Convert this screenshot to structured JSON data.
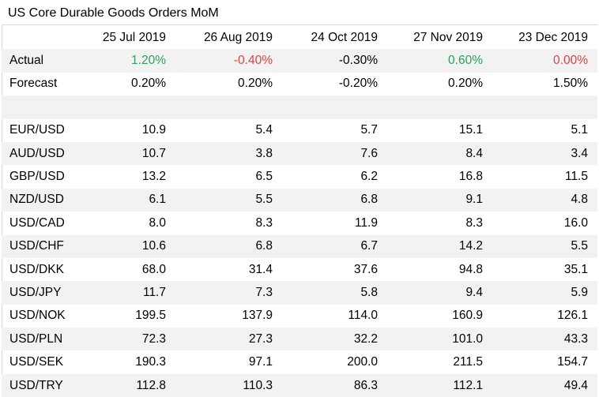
{
  "title": "US Core Durable Goods Orders MoM",
  "columns": [
    "25 Jul 2019",
    "26 Aug 2019",
    "24 Oct 2019",
    "27 Nov 2019",
    "23 Dec 2019"
  ],
  "actual": {
    "label": "Actual",
    "values": [
      "1.20%",
      "-0.40%",
      "-0.30%",
      "0.60%",
      "0.00%"
    ]
  },
  "forecast": {
    "label": "Forecast",
    "values": [
      "0.20%",
      "0.20%",
      "-0.20%",
      "0.20%",
      "1.50%"
    ]
  },
  "pairs": [
    {
      "pair": "EUR/USD",
      "values": [
        "10.9",
        "5.4",
        "5.7",
        "15.1",
        "5.1"
      ]
    },
    {
      "pair": "AUD/USD",
      "values": [
        "10.7",
        "3.8",
        "7.6",
        "8.4",
        "3.4"
      ]
    },
    {
      "pair": "GBP/USD",
      "values": [
        "13.2",
        "6.5",
        "6.2",
        "16.8",
        "11.5"
      ]
    },
    {
      "pair": "NZD/USD",
      "values": [
        "6.1",
        "5.5",
        "6.8",
        "9.1",
        "4.8"
      ]
    },
    {
      "pair": "USD/CAD",
      "values": [
        "8.0",
        "8.3",
        "11.9",
        "8.3",
        "16.0"
      ]
    },
    {
      "pair": "USD/CHF",
      "values": [
        "10.6",
        "6.8",
        "6.7",
        "14.2",
        "5.5"
      ]
    },
    {
      "pair": "USD/DKK",
      "values": [
        "68.0",
        "31.4",
        "37.6",
        "94.8",
        "35.1"
      ]
    },
    {
      "pair": "USD/JPY",
      "values": [
        "11.7",
        "7.3",
        "5.8",
        "9.4",
        "5.9"
      ]
    },
    {
      "pair": "USD/NOK",
      "values": [
        "199.5",
        "137.9",
        "114.0",
        "160.9",
        "126.1"
      ]
    },
    {
      "pair": "USD/PLN",
      "values": [
        "72.3",
        "27.3",
        "32.2",
        "101.0",
        "43.3"
      ]
    },
    {
      "pair": "USD/SEK",
      "values": [
        "190.3",
        "97.1",
        "200.0",
        "211.5",
        "154.7"
      ]
    },
    {
      "pair": "USD/TRY",
      "values": [
        "112.8",
        "110.3",
        "86.3",
        "112.1",
        "49.4"
      ]
    }
  ],
  "colors": {
    "positive": "#2e9e5b",
    "negative": "#d64545",
    "shaded_row": "#f2f2f2"
  }
}
